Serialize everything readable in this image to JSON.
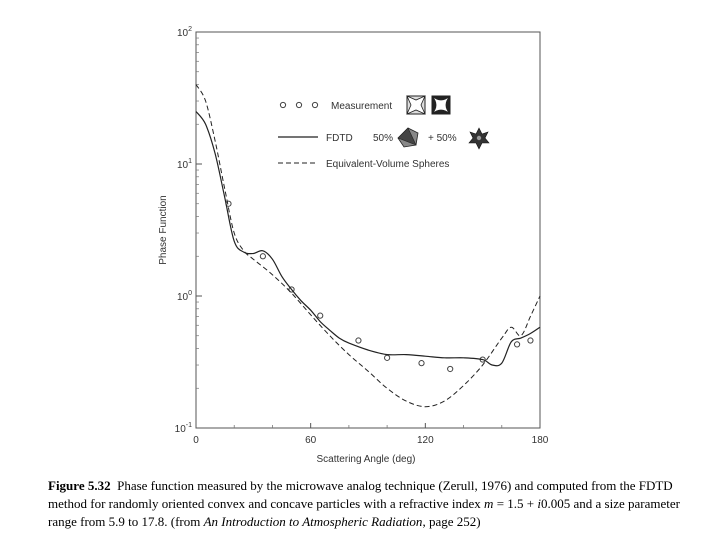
{
  "chart_data": {
    "type": "line",
    "title": "",
    "xlabel": "Scattering Angle (deg)",
    "ylabel": "Phase Function",
    "y_scale": "log",
    "xlim": [
      0,
      180
    ],
    "ylim": [
      0.1,
      100
    ],
    "x_ticks": [
      "0",
      "60",
      "120",
      "180"
    ],
    "y_ticks": [
      {
        "base": "10",
        "exp": "2",
        "value": 100
      },
      {
        "base": "10",
        "exp": "1",
        "value": 10
      },
      {
        "base": "10",
        "exp": "0",
        "value": 1
      },
      {
        "base": "10",
        "exp": "-1",
        "value": 0.1
      }
    ],
    "grid": false,
    "legend_position": "top-right",
    "series": [
      {
        "name": "Measurement",
        "style": "circles",
        "x": [
          17,
          35,
          50,
          65,
          85,
          100,
          118,
          133,
          150,
          168,
          175
        ],
        "y": [
          5.0,
          2.0,
          1.12,
          0.71,
          0.46,
          0.34,
          0.31,
          0.28,
          0.33,
          0.43,
          0.46
        ]
      },
      {
        "name": "FDTD",
        "style": "solid",
        "x": [
          0,
          5,
          10,
          15,
          20,
          25,
          30,
          35,
          40,
          45,
          50,
          55,
          60,
          65,
          70,
          75,
          80,
          90,
          100,
          110,
          120,
          130,
          140,
          150,
          155,
          160,
          165,
          170,
          175,
          180
        ],
        "y": [
          25,
          20,
          12,
          5.6,
          2.6,
          2.15,
          2.1,
          2.2,
          1.9,
          1.4,
          1.12,
          0.92,
          0.78,
          0.64,
          0.55,
          0.48,
          0.44,
          0.39,
          0.36,
          0.36,
          0.35,
          0.34,
          0.34,
          0.33,
          0.3,
          0.31,
          0.45,
          0.48,
          0.52,
          0.58
        ]
      },
      {
        "name": "Equivalent-Volume Spheres",
        "style": "dashed",
        "x": [
          0,
          5,
          10,
          15,
          20,
          25,
          30,
          40,
          50,
          60,
          70,
          80,
          90,
          100,
          110,
          120,
          130,
          140,
          150,
          160,
          165,
          170,
          175,
          180
        ],
        "y": [
          40,
          30,
          15,
          6.5,
          3.0,
          2.2,
          1.9,
          1.45,
          1.05,
          0.72,
          0.5,
          0.36,
          0.27,
          0.2,
          0.16,
          0.145,
          0.16,
          0.21,
          0.3,
          0.48,
          0.58,
          0.5,
          0.7,
          1.0
        ]
      }
    ],
    "legend_labels": {
      "fdtd_percent_a": "50%",
      "fdtd_percent_b": "+ 50%"
    }
  },
  "caption": {
    "label": "Figure 5.32",
    "part1": "Phase function measured by the microwave analog technique (Zerull, 1976) and computed from the FDTD method for randomly oriented convex and concave particles with a refractive index ",
    "m": "m",
    "part2": " = 1.5 + ",
    "i": "i",
    "part3": "0.005 and a size parameter range from 5.9 to 17.8.  (from ",
    "book": "An Introduction to Atmospheric Radiation",
    "part4": ", page 252)"
  }
}
